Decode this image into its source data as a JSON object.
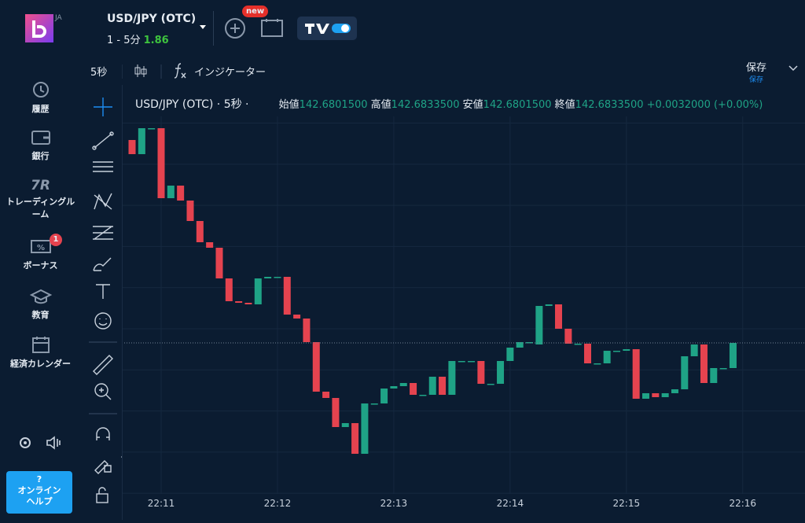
{
  "sidebar": {
    "lang": "JA",
    "items": [
      "履歴",
      "銀行",
      "トレーディングルーム",
      "ボーナス",
      "教育",
      "経済カレンダー"
    ],
    "trading_icon": "7R",
    "bonus_badge": "1",
    "help_icon": "?",
    "help": "オンラインヘルプ"
  },
  "topbar": {
    "pair": "USD/JPY (OTC)",
    "expiry": "1 - 5分",
    "payout": "1.86",
    "new_badge": "new"
  },
  "toolbar": {
    "interval": "5秒",
    "indicators": "インジケーター",
    "save": "保存",
    "save_sub": "保存"
  },
  "legend": {
    "title": "USD/JPY (OTC) · 5秒 ·",
    "open_label": "始値",
    "open": "142.6801500",
    "high_label": "高値",
    "high": "142.6833500",
    "low_label": "安値",
    "low": "142.6801500",
    "close_label": "終値",
    "close": "142.6833500",
    "change": "+0.0032000 (+0.00%)"
  },
  "chart": {
    "type": "candlestick",
    "ylim": [
      142.66195,
      142.71195
    ],
    "xticks": [
      "22:11",
      "22:12",
      "22:13",
      "22:14",
      "22:15",
      "22:16"
    ],
    "up_color": "#1fa386",
    "down_color": "#e5434f",
    "open": [
      142.70915,
      142.70735,
      142.71065,
      142.71065,
      142.70175,
      142.70335,
      142.70145,
      142.69885,
      142.69615,
      142.69545,
      142.69155,
      142.68865,
      142.68845,
      142.68825,
      142.69155,
      142.69175,
      142.69175,
      142.68695,
      142.68645,
      142.68345,
      142.67715,
      142.67635,
      142.67265,
      142.67315,
      142.66925,
      142.67565,
      142.67565,
      142.67755,
      142.67785,
      142.67825,
      142.67675,
      142.67675,
      142.67905,
      142.67675,
      142.68105,
      142.68105,
      142.68105,
      142.67815,
      142.67815,
      142.68105,
      142.68275,
      142.68345,
      142.68315,
      142.68805,
      142.68825,
      142.68515,
      142.68325,
      142.68325,
      142.68075,
      142.68075,
      142.68235,
      142.68235,
      142.68255,
      142.67625,
      142.67695,
      142.67645,
      142.67695,
      142.67745,
      142.68165,
      142.68315,
      142.67825,
      142.68015,
      142.68015
    ],
    "close": [
      142.70735,
      142.71065,
      142.71065,
      142.70175,
      142.70335,
      142.70145,
      142.69885,
      142.69615,
      142.69545,
      142.69155,
      142.68865,
      142.68845,
      142.68825,
      142.69155,
      142.69175,
      142.69175,
      142.68695,
      142.68645,
      142.68345,
      142.67715,
      142.67635,
      142.67265,
      142.67315,
      142.66925,
      142.67565,
      142.67565,
      142.67755,
      142.67785,
      142.67825,
      142.67675,
      142.67675,
      142.67905,
      142.67675,
      142.68105,
      142.68105,
      142.68105,
      142.67815,
      142.67815,
      142.68105,
      142.68275,
      142.68345,
      142.68345,
      142.68805,
      142.68825,
      142.68515,
      142.68325,
      142.68325,
      142.68075,
      142.68075,
      142.68235,
      142.68235,
      142.68255,
      142.67625,
      142.67695,
      142.67645,
      142.67695,
      142.67745,
      142.68165,
      142.68315,
      142.67825,
      142.68015,
      142.68015,
      142.68335
    ]
  }
}
